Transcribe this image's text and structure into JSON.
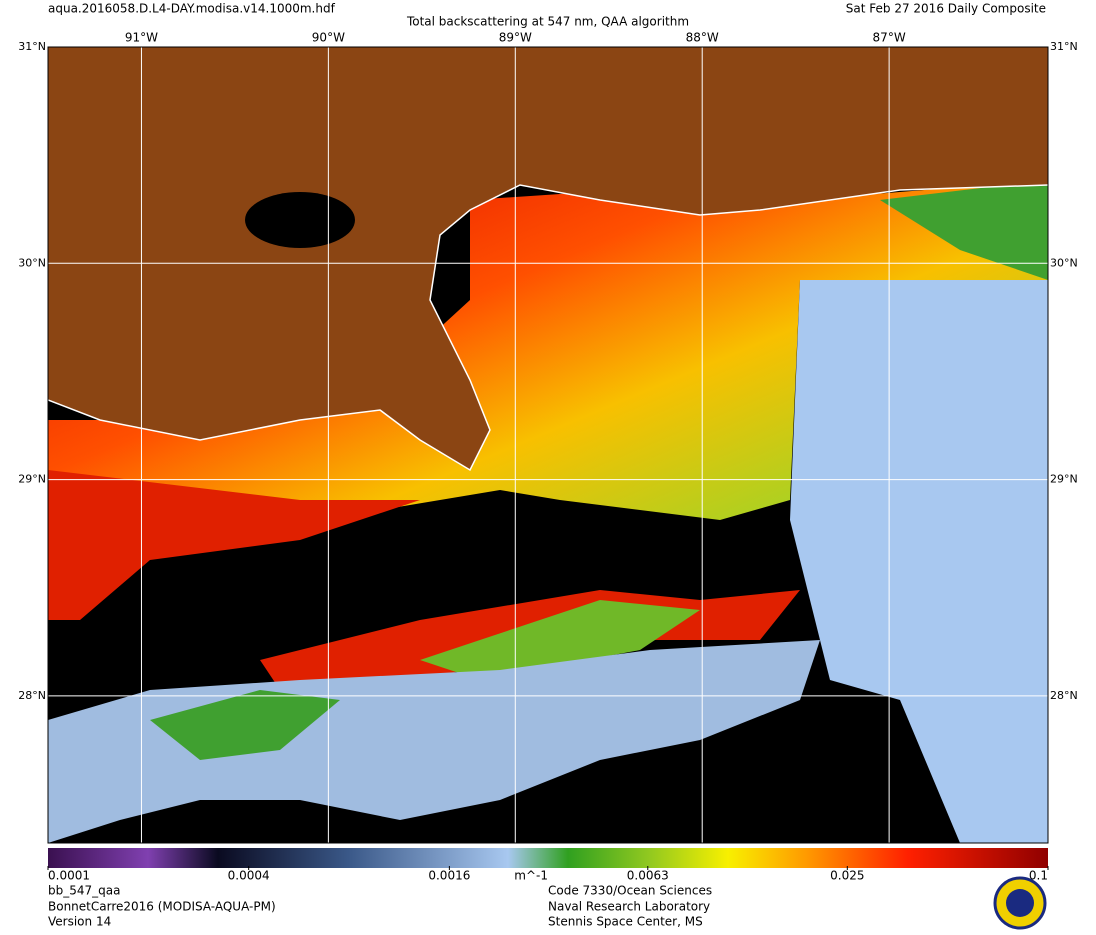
{
  "header": {
    "file": "aqua.2016058.D.L4-DAY.modisa.v14.1000m.hdf",
    "date": "Sat Feb 27 2016 Daily Composite",
    "title": "Total backscattering at 547 nm, QAA algorithm"
  },
  "map": {
    "xlim": [
      -91.5,
      -86.15
    ],
    "ylim": [
      27.32,
      31.0
    ],
    "xticks": [
      {
        "value": -91,
        "label": "91°W"
      },
      {
        "value": -90,
        "label": "90°W"
      },
      {
        "value": -89,
        "label": "89°W"
      },
      {
        "value": -88,
        "label": "88°W"
      },
      {
        "value": -87,
        "label": "87°W"
      }
    ],
    "yticks": [
      {
        "value": 31,
        "label": "31°N"
      },
      {
        "value": 30,
        "label": "30°N"
      },
      {
        "value": 29,
        "label": "29°N"
      },
      {
        "value": 28,
        "label": "28°N"
      }
    ]
  },
  "colorbar": {
    "range": [
      0.0001,
      0.1
    ],
    "log": true,
    "ticks": [
      0.0001,
      0.0004,
      0.0016,
      0.0063,
      0.025,
      0.1
    ],
    "unit": "m^-1"
  },
  "footer": {
    "left": [
      "bb_547_qaa",
      "BonnetCarre2016 (MODISA-AQUA-PM)",
      "Version 14"
    ],
    "right": [
      "Code 7330/Ocean Sciences",
      "Naval Research Laboratory",
      "Stennis Space Center, MS"
    ]
  }
}
